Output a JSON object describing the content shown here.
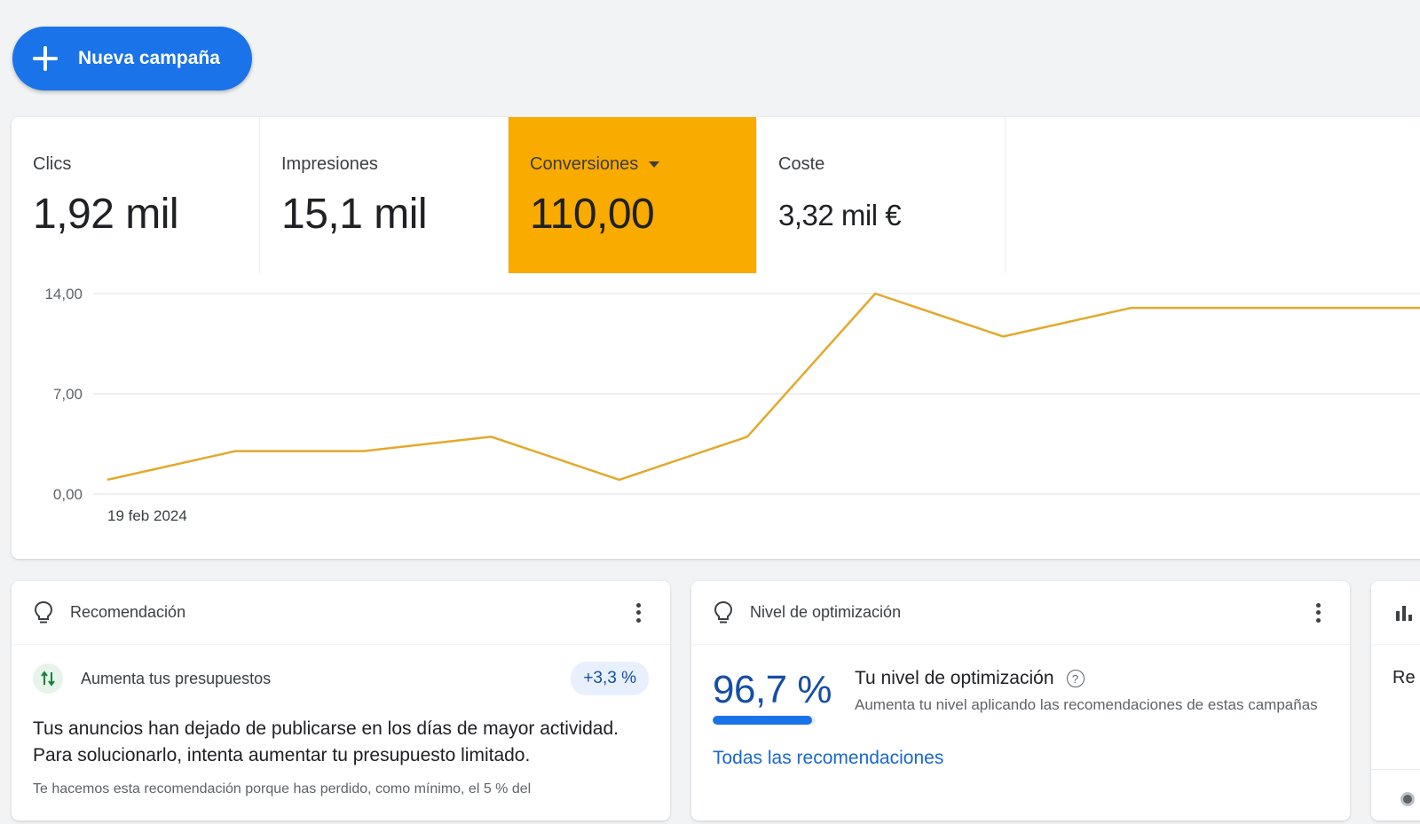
{
  "toolbar": {
    "new_campaign_label": "Nueva campaña"
  },
  "metrics": [
    {
      "label": "Clics",
      "value": "1,92 mil",
      "selected": false
    },
    {
      "label": "Impresiones",
      "value": "15,1 mil",
      "selected": false
    },
    {
      "label": "Conversiones",
      "value": "110,00",
      "selected": true
    },
    {
      "label": "Coste",
      "value": "3,32 mil €",
      "selected": false
    }
  ],
  "colors": {
    "primary": "#1a73e8",
    "selected_metric": "#f9ab00",
    "line": "#e3a92c"
  },
  "chart_data": {
    "type": "line",
    "title": "",
    "xlabel": "",
    "ylabel": "",
    "y_ticks": [
      "14,00",
      "7,00",
      "0,00"
    ],
    "ylim": [
      0,
      14
    ],
    "x_first_label": "19 feb 2024",
    "grid": true,
    "series": [
      {
        "values": [
          1.0,
          3.0,
          3.0,
          4.0,
          1.0,
          4.0,
          14.0,
          11.0,
          13.0,
          13.0,
          13.0
        ]
      }
    ]
  },
  "recommendation": {
    "header": "Recomendación",
    "item_title": "Aumenta tus presupuestos",
    "badge": "+3,3 %",
    "body": "Tus anuncios han dejado de publicarse en los días de mayor actividad. Para solucionarlo, intenta aumentar tu presupuesto limitado.",
    "footnote": "Te hacemos esta recomendación porque has perdido, como mínimo, el 5 % del"
  },
  "optimization": {
    "header": "Nivel de optimización",
    "score": "96,7 %",
    "score_value": 0.967,
    "title": "Tu nivel de optimización",
    "description": "Aumenta tu nivel aplicando las recomendaciones de estas campañas",
    "link": "Todas las recomendaciones"
  },
  "third_card": {
    "text": "Re"
  }
}
